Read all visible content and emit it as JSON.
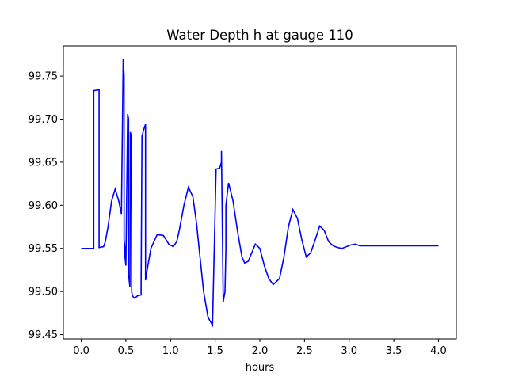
{
  "chart_data": {
    "type": "line",
    "title": "Water Depth h at gauge 110",
    "xlabel": "hours",
    "ylabel": "",
    "xlim": [
      -0.2,
      4.2
    ],
    "ylim": [
      99.445,
      99.785
    ],
    "xticks": [
      0.0,
      0.5,
      1.0,
      1.5,
      2.0,
      2.5,
      3.0,
      3.5,
      4.0
    ],
    "xtick_labels": [
      "0.0",
      "0.5",
      "1.0",
      "1.5",
      "2.0",
      "2.5",
      "3.0",
      "3.5",
      "4.0"
    ],
    "yticks": [
      99.45,
      99.5,
      99.55,
      99.6,
      99.65,
      99.7,
      99.75
    ],
    "ytick_labels": [
      "99.45",
      "99.50",
      "99.55",
      "99.60",
      "99.65",
      "99.70",
      "99.75"
    ],
    "grid": false,
    "series": [
      {
        "color": "#0000ff",
        "x": [
          0.0,
          0.14,
          0.14,
          0.2,
          0.2,
          0.25,
          0.27,
          0.3,
          0.34,
          0.38,
          0.42,
          0.45,
          0.47,
          0.48,
          0.48,
          0.49,
          0.49,
          0.5,
          0.52,
          0.53,
          0.53,
          0.545,
          0.55,
          0.56,
          0.565,
          0.57,
          0.57,
          0.58,
          0.6,
          0.63,
          0.67,
          0.68,
          0.68,
          0.7,
          0.72,
          0.72,
          0.73,
          0.78,
          0.85,
          0.92,
          0.98,
          1.03,
          1.07,
          1.1,
          1.15,
          1.2,
          1.25,
          1.29,
          1.33,
          1.37,
          1.42,
          1.47,
          1.51,
          1.55,
          1.57,
          1.57,
          1.59,
          1.61,
          1.62,
          1.62,
          1.65,
          1.7,
          1.75,
          1.8,
          1.83,
          1.87,
          1.91,
          1.95,
          2.0,
          2.05,
          2.1,
          2.15,
          2.22,
          2.27,
          2.32,
          2.37,
          2.42,
          2.47,
          2.52,
          2.57,
          2.62,
          2.67,
          2.72,
          2.77,
          2.82,
          2.87,
          2.92,
          2.97,
          3.02,
          3.07,
          3.12,
          3.17,
          3.22,
          3.27,
          3.32,
          3.37,
          3.42,
          3.47,
          3.52,
          3.6,
          3.7,
          3.8,
          3.9,
          4.0
        ],
        "y": [
          99.55,
          99.55,
          99.733,
          99.734,
          99.551,
          99.552,
          99.558,
          99.575,
          99.605,
          99.619,
          99.605,
          99.59,
          99.77,
          99.75,
          99.56,
          99.55,
          99.54,
          99.53,
          99.706,
          99.7,
          99.52,
          99.505,
          99.685,
          99.68,
          99.5,
          99.497,
          99.496,
          99.494,
          99.492,
          99.495,
          99.496,
          99.678,
          99.68,
          99.688,
          99.694,
          99.513,
          99.52,
          99.55,
          99.566,
          99.565,
          99.555,
          99.552,
          99.558,
          99.572,
          99.6,
          99.621,
          99.61,
          99.58,
          99.54,
          99.5,
          99.47,
          99.461,
          99.642,
          99.643,
          99.65,
          99.663,
          99.488,
          99.5,
          99.55,
          99.6,
          99.626,
          99.605,
          99.57,
          99.54,
          99.533,
          99.535,
          99.545,
          99.555,
          99.55,
          99.53,
          99.515,
          99.508,
          99.515,
          99.54,
          99.575,
          99.595,
          99.585,
          99.56,
          99.54,
          99.545,
          99.56,
          99.576,
          99.571,
          99.558,
          99.553,
          99.551,
          99.55,
          99.552,
          99.554,
          99.555,
          99.553,
          99.553,
          99.553,
          99.553,
          99.553,
          99.553,
          99.553,
          99.553,
          99.553,
          99.553,
          99.553,
          99.553,
          99.553,
          99.553
        ]
      }
    ]
  }
}
